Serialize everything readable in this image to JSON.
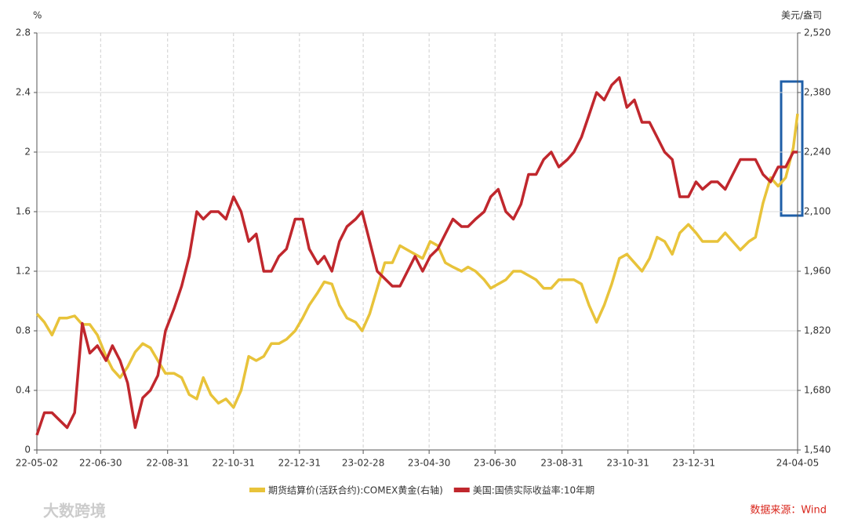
{
  "chart_data": {
    "type": "line",
    "y_label": "%",
    "y2_label": "美元/盎司",
    "x": [
      "22-05-02",
      "22-05-09",
      "22-05-16",
      "22-05-23",
      "22-05-30",
      "22-06-06",
      "22-06-13",
      "22-06-20",
      "22-06-27",
      "22-07-05",
      "22-07-11",
      "22-07-18",
      "22-07-25",
      "22-08-01",
      "22-08-08",
      "22-08-15",
      "22-08-22",
      "22-08-29",
      "22-09-06",
      "22-09-13",
      "22-09-20",
      "22-09-27",
      "22-10-03",
      "22-10-10",
      "22-10-17",
      "22-10-24",
      "22-10-31",
      "22-11-07",
      "22-11-14",
      "22-11-21",
      "22-11-28",
      "22-12-05",
      "22-12-12",
      "22-12-19",
      "22-12-27",
      "23-01-03",
      "23-01-09",
      "23-01-17",
      "23-01-23",
      "23-01-30",
      "23-02-06",
      "23-02-13",
      "23-02-21",
      "23-02-27",
      "23-03-06",
      "23-03-13",
      "23-03-20",
      "23-03-27",
      "23-04-03",
      "23-04-10",
      "23-04-17",
      "23-04-24",
      "23-05-01",
      "23-05-08",
      "23-05-15",
      "23-05-22",
      "23-05-30",
      "23-06-05",
      "23-06-12",
      "23-06-20",
      "23-06-26",
      "23-07-03",
      "23-07-10",
      "23-07-17",
      "23-07-24",
      "23-07-31",
      "23-08-07",
      "23-08-14",
      "23-08-21",
      "23-08-28",
      "23-09-05",
      "23-09-11",
      "23-09-18",
      "23-09-25",
      "23-10-02",
      "23-10-09",
      "23-10-16",
      "23-10-23",
      "23-10-30",
      "23-11-06",
      "23-11-13",
      "23-11-20",
      "23-11-27",
      "23-12-04",
      "23-12-11",
      "23-12-18",
      "23-12-26",
      "24-01-02",
      "24-01-08",
      "24-01-16",
      "24-01-22",
      "24-01-29",
      "24-02-05",
      "24-02-12",
      "24-02-20",
      "24-02-26",
      "24-03-04",
      "24-03-11",
      "24-03-18",
      "24-03-25",
      "24-04-01",
      "24-04-05"
    ],
    "series": [
      {
        "name": "期货结算价(活跃合约):COMEX黄金(右轴)",
        "color": "#e8c33a",
        "axis": "y2",
        "values": [
          1860,
          1840,
          1810,
          1850,
          1850,
          1855,
          1835,
          1835,
          1810,
          1760,
          1730,
          1710,
          1735,
          1770,
          1790,
          1780,
          1750,
          1720,
          1720,
          1710,
          1670,
          1660,
          1710,
          1670,
          1650,
          1660,
          1640,
          1680,
          1760,
          1750,
          1760,
          1790,
          1790,
          1800,
          1820,
          1850,
          1880,
          1910,
          1935,
          1930,
          1880,
          1850,
          1840,
          1820,
          1860,
          1920,
          1980,
          1980,
          2020,
          2010,
          2000,
          1990,
          2030,
          2020,
          1980,
          1970,
          1960,
          1970,
          1960,
          1940,
          1920,
          1930,
          1940,
          1960,
          1960,
          1950,
          1940,
          1920,
          1920,
          1940,
          1940,
          1940,
          1930,
          1880,
          1840,
          1880,
          1930,
          1990,
          2000,
          1980,
          1960,
          1990,
          2040,
          2030,
          2000,
          2050,
          2070,
          2050,
          2030,
          2030,
          2030,
          2050,
          2030,
          2010,
          2030,
          2040,
          2120,
          2180,
          2160,
          2180,
          2250,
          2330
        ]
      },
      {
        "name": "美国:国债实际收益率:10年期",
        "color": "#c0272d",
        "values": [
          0.1,
          0.25,
          0.25,
          0.2,
          0.15,
          0.25,
          0.85,
          0.65,
          0.7,
          0.6,
          0.7,
          0.6,
          0.45,
          0.15,
          0.35,
          0.4,
          0.5,
          0.8,
          0.95,
          1.1,
          1.3,
          1.6,
          1.55,
          1.6,
          1.6,
          1.55,
          1.7,
          1.6,
          1.4,
          1.45,
          1.2,
          1.2,
          1.3,
          1.35,
          1.55,
          1.55,
          1.35,
          1.25,
          1.3,
          1.2,
          1.4,
          1.5,
          1.55,
          1.6,
          1.4,
          1.2,
          1.15,
          1.1,
          1.1,
          1.2,
          1.3,
          1.2,
          1.3,
          1.35,
          1.45,
          1.55,
          1.5,
          1.5,
          1.55,
          1.6,
          1.7,
          1.75,
          1.6,
          1.55,
          1.65,
          1.85,
          1.85,
          1.95,
          2.0,
          1.9,
          1.95,
          2.0,
          2.1,
          2.25,
          2.4,
          2.35,
          2.45,
          2.5,
          2.3,
          2.35,
          2.2,
          2.2,
          2.1,
          2.0,
          1.95,
          1.7,
          1.7,
          1.8,
          1.75,
          1.8,
          1.8,
          1.75,
          1.85,
          1.95,
          1.95,
          1.95,
          1.85,
          1.8,
          1.9,
          1.9,
          2.0,
          2.0
        ]
      }
    ],
    "xlim": [
      "22-05-02",
      "24-04-05"
    ],
    "xticks": [
      "22-05-02",
      "22-06-30",
      "22-08-31",
      "22-10-31",
      "22-12-31",
      "23-02-28",
      "23-04-30",
      "23-06-30",
      "23-08-31",
      "23-10-31",
      "23-12-31",
      "24-04-05"
    ],
    "ylim": [
      0,
      2.8
    ],
    "yticks": [
      0,
      0.4,
      0.8,
      1.2,
      1.6,
      2,
      2.4,
      2.8
    ],
    "y2lim": [
      1540,
      2520
    ],
    "y2ticks": [
      {
        "value": 1540,
        "label": "1,540"
      },
      {
        "value": 1680,
        "label": "1,680"
      },
      {
        "value": 1820,
        "label": "1,820"
      },
      {
        "value": 1960,
        "label": "1,960"
      },
      {
        "value": 2100,
        "label": "2,100"
      },
      {
        "value": 2240,
        "label": "2,240"
      },
      {
        "value": 2380,
        "label": "2,380"
      },
      {
        "value": 2520,
        "label": "2,520"
      }
    ],
    "grid": true,
    "legend": "bottom",
    "source": "数据来源：Wind",
    "watermark": "大数跨境"
  }
}
